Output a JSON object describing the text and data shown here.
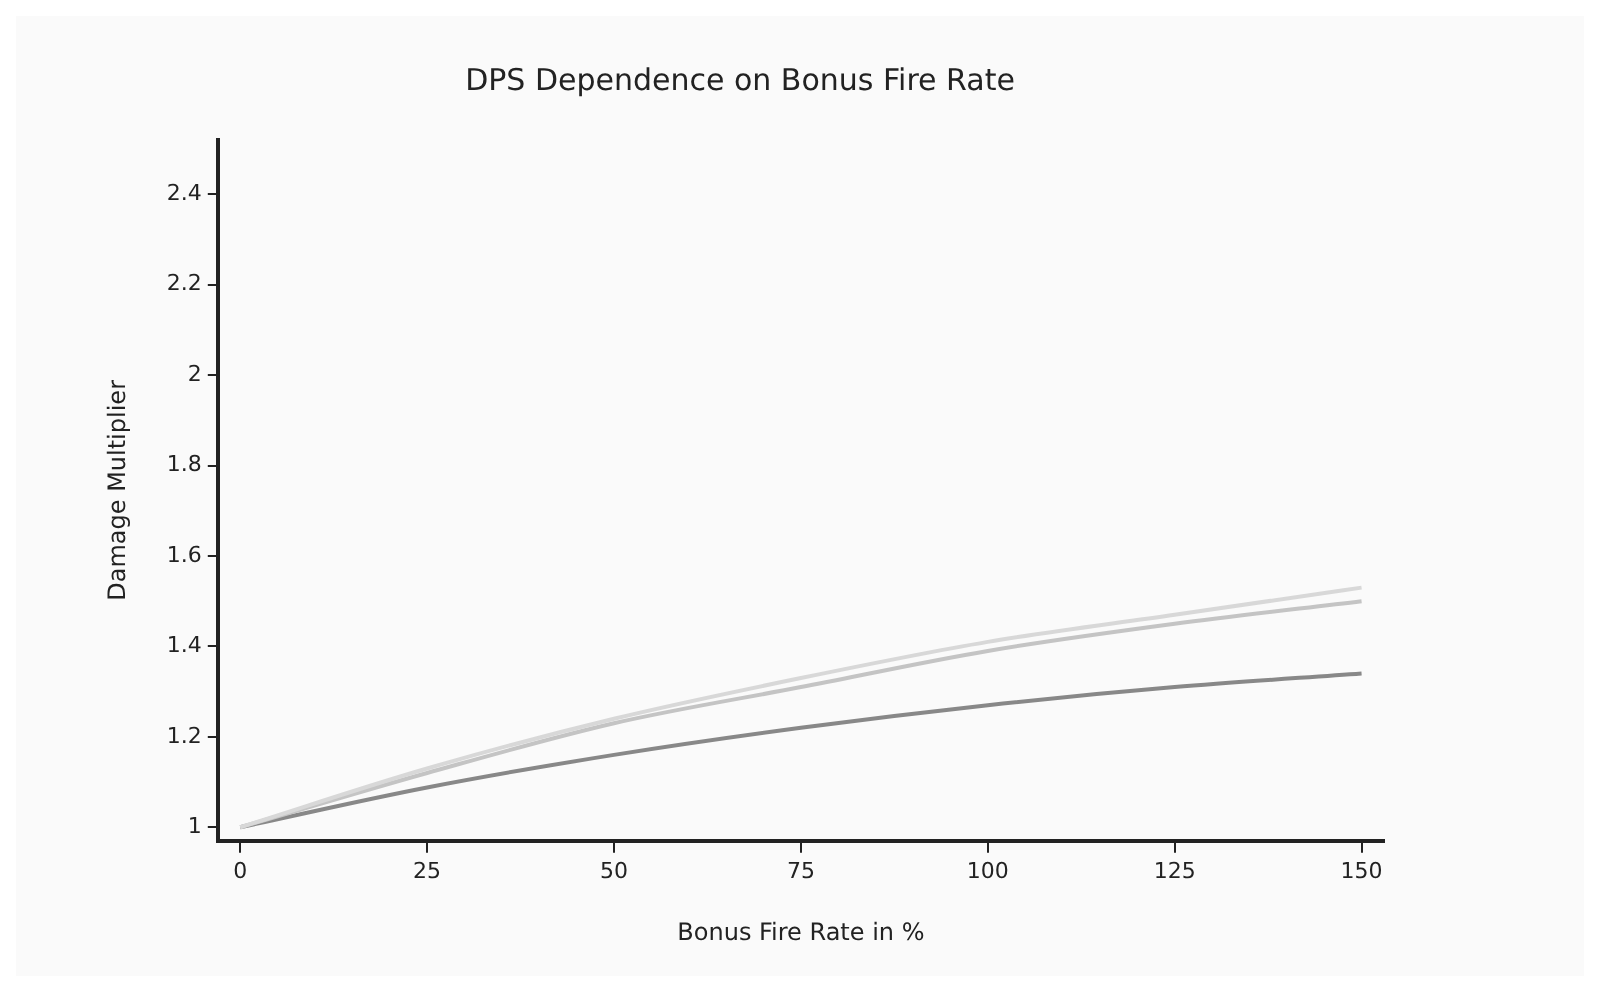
{
  "chart_data": {
    "type": "line",
    "title": "DPS Dependence on Bonus Fire Rate",
    "xlabel": "Bonus Fire Rate in %",
    "ylabel": "Damage Multiplier",
    "x": [
      0,
      25,
      50,
      75,
      100,
      125,
      150
    ],
    "series": [
      {
        "color": "#d8d8d8",
        "values": [
          1,
          1.13,
          1.24,
          1.33,
          1.41,
          1.47,
          1.53
        ]
      },
      {
        "color": "#c4c4c4",
        "values": [
          1,
          1.12,
          1.23,
          1.31,
          1.39,
          1.45,
          1.5
        ]
      },
      {
        "color": "#888888",
        "values": [
          1,
          1.088,
          1.16,
          1.22,
          1.27,
          1.31,
          1.34
        ]
      }
    ],
    "xlim": [
      -3,
      153
    ],
    "xticks": [
      0,
      25,
      50,
      75,
      100,
      125,
      150
    ],
    "ylim": [
      0.97,
      2.52
    ],
    "yticks": [
      1,
      1.2,
      1.4,
      1.6,
      1.8,
      2,
      2.2,
      2.4
    ],
    "grid": false,
    "legend": false,
    "marker": "none",
    "line_style": "solid"
  }
}
